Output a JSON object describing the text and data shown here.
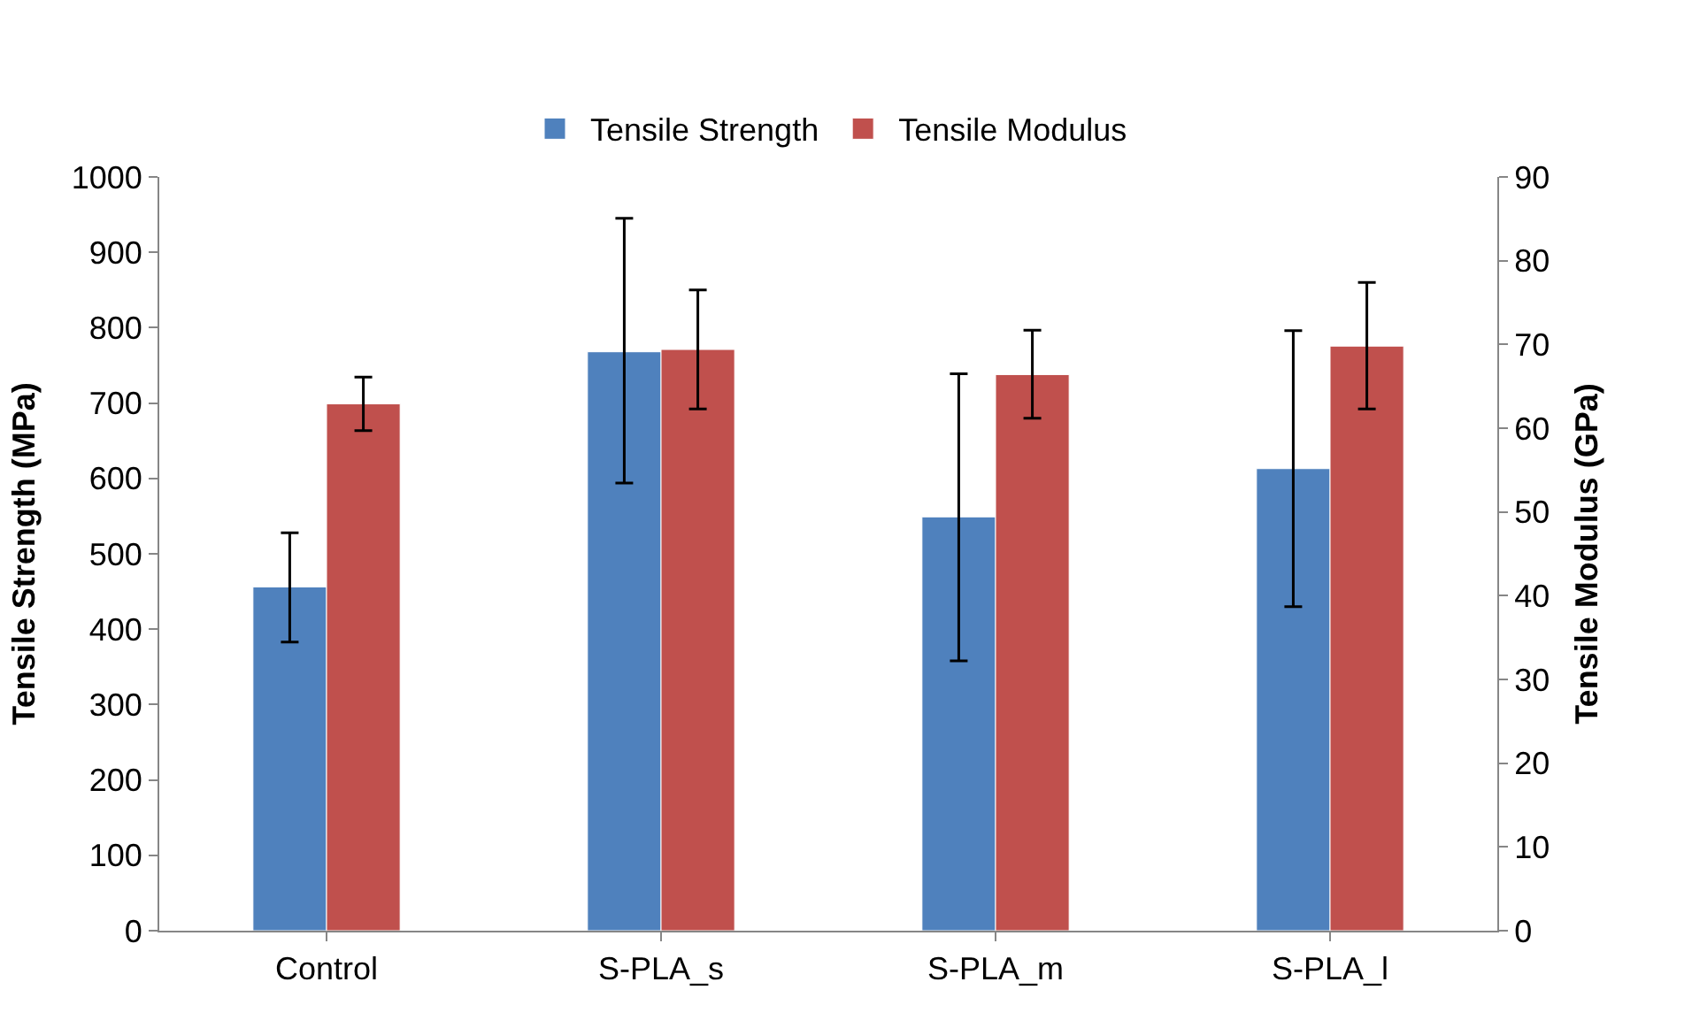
{
  "chart_data": {
    "type": "bar",
    "categories": [
      "Control",
      "S-PLA_s",
      "S-PLA_m",
      "S-PLA_l"
    ],
    "ylabel": "Tensile Strength (MPa)",
    "y2label": "Tensile Modulus (GPa)",
    "series": [
      {
        "name": "Tensile Strength",
        "color": "#4f81bd",
        "values": [
          456,
          768,
          549,
          613
        ],
        "errors": [
          [
            383,
            528
          ],
          [
            594,
            945
          ],
          [
            358,
            739
          ],
          [
            430,
            796
          ]
        ]
      },
      {
        "name": "Tensile Modulus",
        "color": "#c0504d",
        "axis": "y2",
        "values": [
          62.9,
          69.4,
          66.4,
          69.8
        ],
        "errors": [
          [
            59.7,
            66.1
          ],
          [
            62.3,
            76.5
          ],
          [
            61.2,
            71.7
          ],
          [
            62.3,
            77.4
          ]
        ]
      }
    ],
    "ylim": [
      0,
      1000
    ],
    "yticks": [
      0,
      100,
      200,
      300,
      400,
      500,
      600,
      700,
      800,
      900,
      1000
    ],
    "y2lim": [
      0,
      90
    ],
    "y2ticks": [
      0,
      10,
      20,
      30,
      40,
      50,
      60,
      70,
      80,
      90
    ],
    "legend": "top"
  }
}
